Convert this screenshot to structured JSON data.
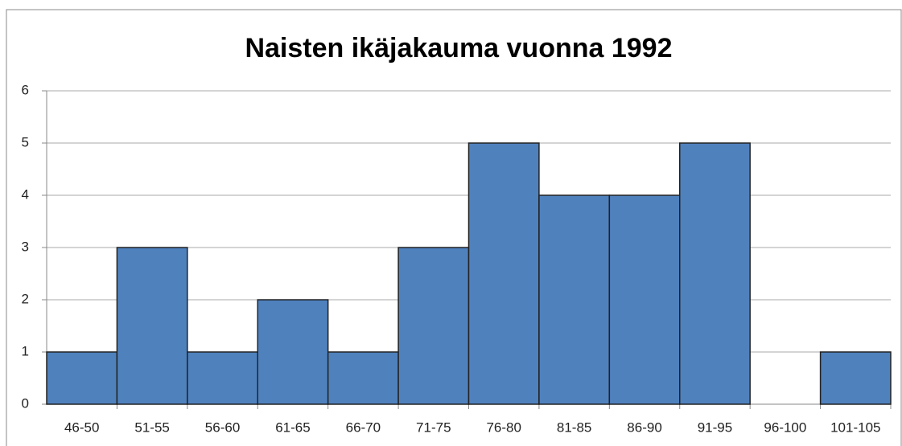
{
  "chart_data": {
    "type": "bar",
    "title": "Naisten ikäjakauma vuonna 1992",
    "categories": [
      "46-50",
      "51-55",
      "56-60",
      "61-65",
      "66-70",
      "71-75",
      "76-80",
      "81-85",
      "86-90",
      "91-95",
      "96-100",
      "101-105"
    ],
    "values": [
      1,
      3,
      1,
      2,
      1,
      3,
      5,
      4,
      4,
      5,
      0,
      1
    ],
    "color": "#4f81bd",
    "ylim": [
      0,
      6
    ],
    "yticks": [
      0,
      1,
      2,
      3,
      4,
      5,
      6
    ],
    "grid": true
  }
}
